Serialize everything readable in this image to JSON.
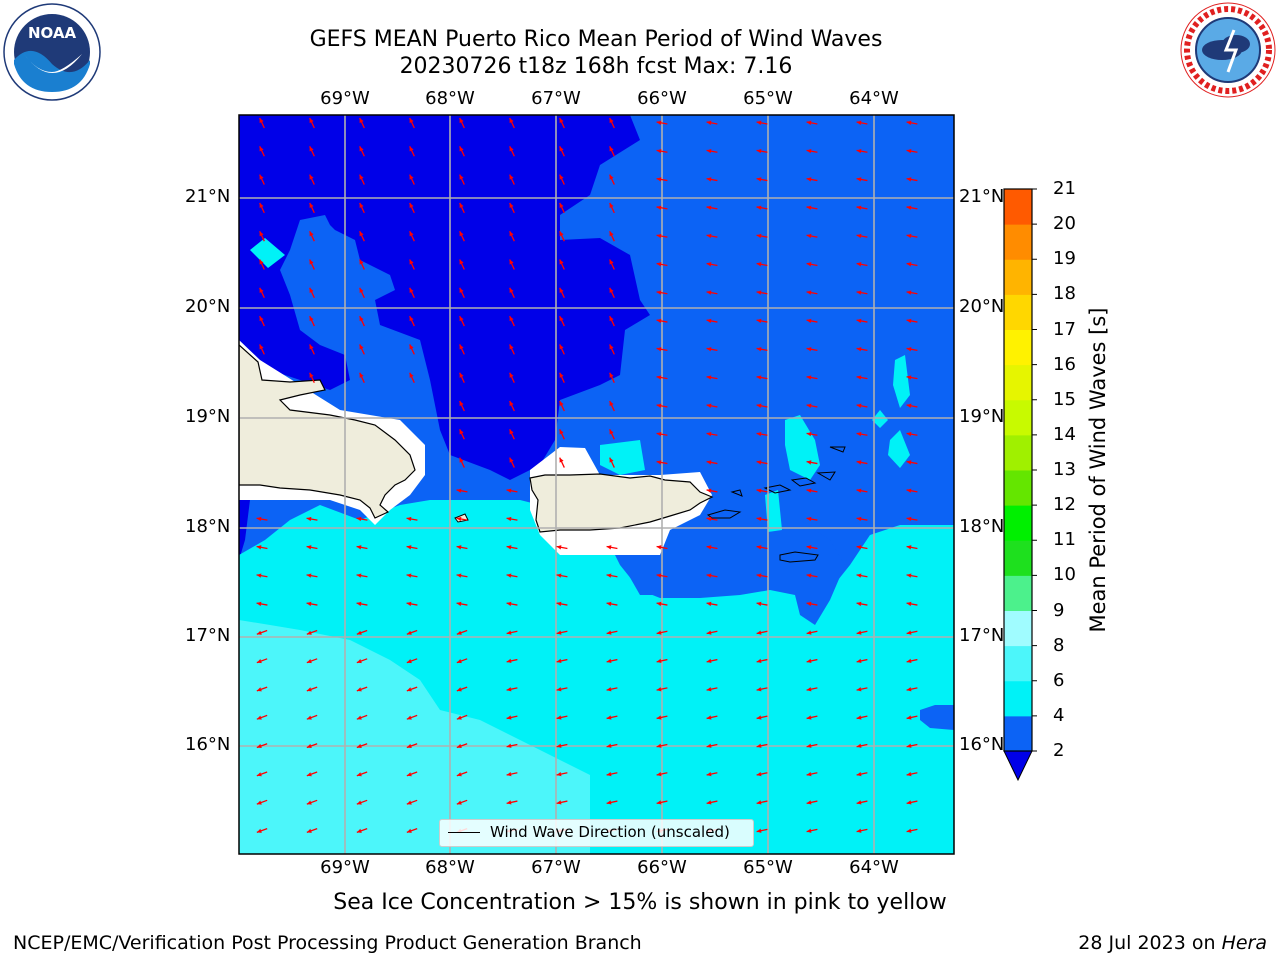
{
  "header": {
    "title_line1": "GEFS MEAN Puerto Rico Mean Period of Wind Waves",
    "title_line2": "20230726 t18z 168h fcst   Max: 7.16"
  },
  "logos": {
    "left": {
      "text": "NOAA",
      "ring_text": "NATIONAL OCEANIC AND ATMOSPHERIC ADMINISTRATION · U.S. DEPARTMENT OF COMMERCE"
    },
    "right": {
      "ring_text": "NATIONAL WEATHER SERVICE"
    }
  },
  "map": {
    "lon_labels": [
      "69°W",
      "68°W",
      "67°W",
      "66°W",
      "65°W",
      "64°W"
    ],
    "lat_labels": [
      "21°N",
      "20°N",
      "19°N",
      "18°N",
      "17°N",
      "16°N"
    ],
    "legend_label": "Wind Wave Direction (unscaled)",
    "colors": {
      "band_2_4": "#0c63f5",
      "band_lt_2": "#0000e8",
      "band_4_6": "#00f2f7",
      "band_6_8": "#4cf6fa",
      "land": "#efeddc",
      "arrow": "#ff0000",
      "grid": "#b0b0b0"
    }
  },
  "colorbar": {
    "label": "Mean Period of Wind Waves [s]",
    "ticks": [
      "2",
      "4",
      "6",
      "8",
      "9",
      "10",
      "11",
      "12",
      "13",
      "14",
      "15",
      "16",
      "17",
      "18",
      "19",
      "20",
      "21"
    ],
    "colors": [
      "#0c63f5",
      "#00f2f7",
      "#4cf6fa",
      "#a0fcff",
      "#4cf18c",
      "#1ee01e",
      "#00f000",
      "#64e600",
      "#a0f000",
      "#c8fa00",
      "#e6f500",
      "#fff200",
      "#ffd700",
      "#ffb400",
      "#ff8c00",
      "#ff5a00",
      "#ff2800",
      "#ff0000"
    ],
    "under_color": "#0000e8"
  },
  "note": "Sea Ice Concentration > 15% is shown in pink to yellow",
  "footer": {
    "left": "NCEP/EMC/Verification Post Processing Product Generation Branch",
    "right_prefix": "28 Jul 2023 on ",
    "right_host": "Hera"
  }
}
